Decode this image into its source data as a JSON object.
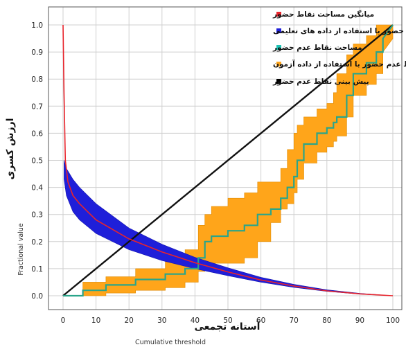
{
  "chart_data": {
    "type": "line",
    "xlabel_fa": "آستانه تجمعی",
    "xlabel_en": "Cumulative threshold",
    "ylabel_fa": "ارزش کسری",
    "ylabel_en": "Fractional value",
    "xlim": [
      0,
      100
    ],
    "ylim": [
      0,
      1
    ],
    "x_ticks": [
      "0",
      "10",
      "20",
      "30",
      "40",
      "50",
      "60",
      "70",
      "80",
      "90",
      "100"
    ],
    "y_ticks": [
      "0.0",
      "0.1",
      "0.2",
      "0.3",
      "0.4",
      "0.5",
      "0.6",
      "0.7",
      "0.8",
      "0.9",
      "1.0"
    ],
    "grid": true,
    "legend_position": "top-right",
    "legend": [
      {
        "label": "میانگین مساحت نقاط حضور",
        "color": "#e8242c"
      },
      {
        "label": "میانگین نقاط حضور با استفاده از داده های تعلیمی",
        "color": "#1f1fd9"
      },
      {
        "label": "مساحت نقاط عدم حضور",
        "color": "#1ec3b5"
      },
      {
        "label": "میانگین نقاط عدم حضور با استفاده از داده  آزمون",
        "color": "#ffa51a"
      },
      {
        "label": "پیش بینی نقاط عدم حضور",
        "color": "#000000"
      }
    ],
    "series": {
      "mean_area": {
        "x": [
          0,
          0.3,
          0.7,
          1.5,
          3,
          5,
          10,
          20,
          30,
          40,
          50,
          60,
          70,
          80,
          90,
          100
        ],
        "y": [
          1.0,
          0.75,
          0.5,
          0.42,
          0.37,
          0.34,
          0.28,
          0.21,
          0.162,
          0.122,
          0.088,
          0.058,
          0.036,
          0.018,
          0.007,
          0.0
        ]
      },
      "training_band": {
        "x": [
          0.3,
          1,
          3,
          5,
          10,
          20,
          30,
          40,
          50,
          60,
          70,
          80,
          90,
          100
        ],
        "lower": [
          0.43,
          0.37,
          0.31,
          0.28,
          0.23,
          0.17,
          0.13,
          0.1,
          0.074,
          0.05,
          0.031,
          0.016,
          0.006,
          0.0
        ],
        "upper": [
          0.5,
          0.47,
          0.43,
          0.4,
          0.34,
          0.25,
          0.19,
          0.142,
          0.103,
          0.068,
          0.042,
          0.022,
          0.009,
          0.0
        ]
      },
      "test_omission": {
        "x": [
          0,
          6,
          6,
          13,
          13,
          22,
          22,
          31,
          31,
          37,
          37,
          41,
          41,
          43,
          43,
          45,
          45,
          50,
          50,
          55,
          55,
          59,
          59,
          63,
          63,
          66,
          66,
          68,
          68,
          70,
          70,
          71,
          71,
          73,
          73,
          77,
          77,
          80,
          80,
          82,
          82,
          83,
          83,
          86,
          86,
          88,
          88,
          92,
          92,
          95,
          95,
          97,
          97,
          100
        ],
        "y": [
          0.0,
          0.0,
          0.02,
          0.02,
          0.04,
          0.04,
          0.06,
          0.06,
          0.08,
          0.08,
          0.1,
          0.1,
          0.14,
          0.14,
          0.2,
          0.2,
          0.22,
          0.22,
          0.24,
          0.24,
          0.26,
          0.26,
          0.3,
          0.3,
          0.32,
          0.32,
          0.36,
          0.36,
          0.4,
          0.4,
          0.44,
          0.44,
          0.5,
          0.5,
          0.56,
          0.56,
          0.6,
          0.6,
          0.62,
          0.62,
          0.64,
          0.64,
          0.66,
          0.66,
          0.74,
          0.74,
          0.82,
          0.82,
          0.86,
          0.86,
          0.9,
          0.9,
          0.95,
          1.0
        ]
      },
      "test_band": {
        "x": [
          0,
          6,
          6,
          13,
          13,
          22,
          22,
          31,
          31,
          37,
          37,
          41,
          41,
          43,
          43,
          45,
          45,
          50,
          50,
          55,
          55,
          59,
          59,
          63,
          63,
          66,
          66,
          68,
          68,
          70,
          70,
          71,
          71,
          73,
          73,
          77,
          77,
          80,
          80,
          82,
          82,
          83,
          83,
          86,
          86,
          88,
          88,
          92,
          92,
          95,
          95,
          97,
          97,
          100
        ],
        "lower": [
          0.0,
          0.0,
          0.0,
          0.0,
          0.01,
          0.01,
          0.02,
          0.02,
          0.03,
          0.03,
          0.05,
          0.05,
          0.09,
          0.09,
          0.11,
          0.11,
          0.12,
          0.12,
          0.12,
          0.12,
          0.14,
          0.14,
          0.2,
          0.2,
          0.27,
          0.27,
          0.32,
          0.32,
          0.34,
          0.34,
          0.38,
          0.38,
          0.43,
          0.43,
          0.49,
          0.49,
          0.53,
          0.53,
          0.55,
          0.55,
          0.57,
          0.57,
          0.59,
          0.59,
          0.66,
          0.66,
          0.74,
          0.74,
          0.78,
          0.78,
          0.82,
          0.82,
          0.9,
          0.95
        ],
        "upper": [
          0.0,
          0.0,
          0.05,
          0.05,
          0.07,
          0.07,
          0.1,
          0.1,
          0.13,
          0.13,
          0.17,
          0.17,
          0.26,
          0.26,
          0.3,
          0.3,
          0.33,
          0.33,
          0.36,
          0.36,
          0.38,
          0.38,
          0.42,
          0.42,
          0.42,
          0.42,
          0.47,
          0.47,
          0.54,
          0.54,
          0.6,
          0.6,
          0.63,
          0.63,
          0.66,
          0.66,
          0.69,
          0.69,
          0.71,
          0.71,
          0.75,
          0.75,
          0.82,
          0.82,
          0.89,
          0.89,
          0.93,
          0.93,
          0.96,
          0.96,
          1.0,
          1.0,
          1.0,
          1.0
        ]
      },
      "predicted_omission": {
        "x": [
          0,
          100
        ],
        "y": [
          0.0,
          1.0
        ]
      }
    }
  }
}
